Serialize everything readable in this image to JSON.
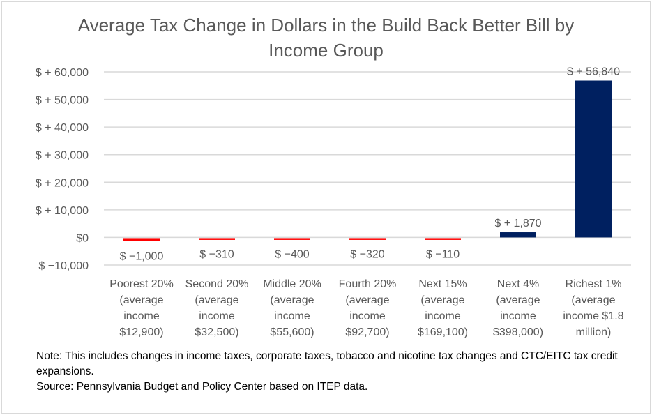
{
  "chart_data": {
    "type": "bar",
    "title": "Average Tax Change in Dollars in the Build Back Better Bill by Income Group",
    "title_lines": [
      "Average Tax Change in Dollars in the Build Back Better Bill by",
      "Income Group"
    ],
    "xlabel": "",
    "ylabel": "",
    "ylim": [
      -10000,
      60000
    ],
    "yticks": [
      -10000,
      0,
      10000,
      20000,
      30000,
      40000,
      50000,
      60000
    ],
    "ytick_labels": [
      "$ −10,000",
      "$0",
      "$ + 10,000",
      "$ + 20,000",
      "$ + 30,000",
      "$ + 40,000",
      "$ + 50,000",
      "$ + 60,000"
    ],
    "grid": true,
    "categories": [
      [
        "Poorest 20%",
        "(average",
        "income",
        "$12,900)"
      ],
      [
        "Second 20%",
        "(average",
        "income",
        "$32,500)"
      ],
      [
        "Middle 20%",
        "(average",
        "income",
        "$55,600)"
      ],
      [
        "Fourth 20%",
        "(average",
        "income",
        "$92,700)"
      ],
      [
        "Next 15%",
        "(average",
        "income",
        "$169,100)"
      ],
      [
        "Next 4%",
        "(average",
        "income",
        "$398,000)"
      ],
      [
        "Richest 1%",
        "(average",
        "income $1.8",
        "million)"
      ]
    ],
    "values": [
      -1000,
      -310,
      -400,
      -320,
      -110,
      1870,
      56840
    ],
    "data_labels": [
      "$ −1,000",
      "$ −310",
      "$ −400",
      "$ −320",
      "$ −110",
      "$ + 1,870",
      "$ + 56,840"
    ],
    "bar_colors": [
      "#ff0000",
      "#ff0000",
      "#ff0000",
      "#ff0000",
      "#ff0000",
      "#002060",
      "#002060"
    ]
  },
  "notes": {
    "note": "Note: This includes changes in income taxes, corporate taxes, tobacco and nicotine tax changes and CTC/EITC tax credit expansions.",
    "source": "Source: Pennsylvania Budget and Policy Center based on ITEP data."
  },
  "colors": {
    "text": "#595959",
    "grid": "#d9d9d9",
    "negative": "#ff0000",
    "positive": "#002060"
  }
}
